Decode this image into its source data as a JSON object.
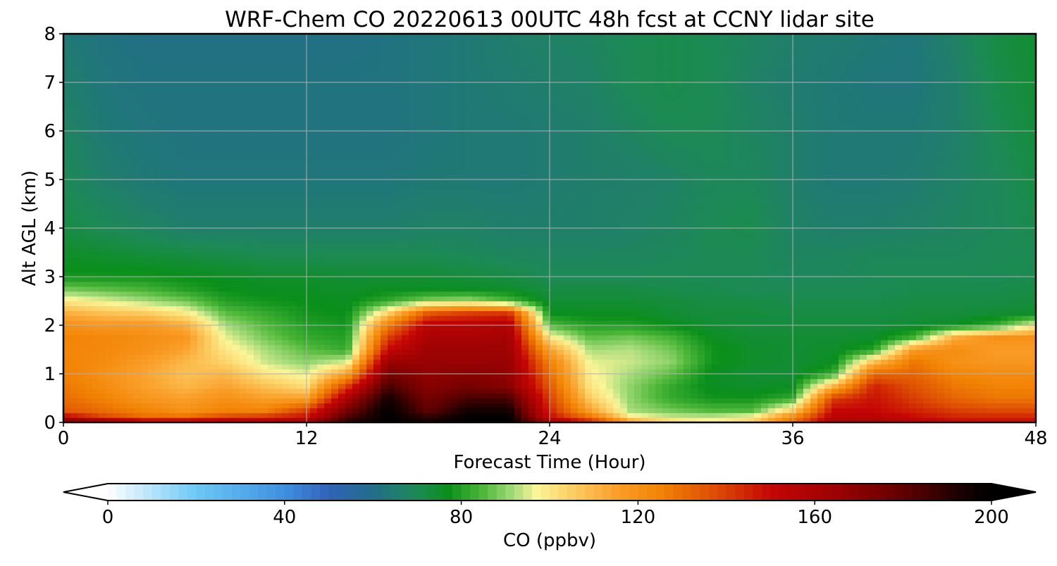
{
  "chart_data": {
    "type": "heatmap",
    "title": "WRF-Chem CO  20220613 00UTC 48h fcst at CCNY lidar site",
    "xlabel": "Forecast Time (Hour)",
    "ylabel": "Alt AGL (km)",
    "xlim": [
      0,
      48
    ],
    "ylim": [
      0,
      8
    ],
    "xticks": [
      0,
      12,
      24,
      36,
      48
    ],
    "xtick_labels": [
      "0",
      "12",
      "24",
      "36",
      "48"
    ],
    "yticks": [
      0,
      1,
      2,
      3,
      4,
      5,
      6,
      7,
      8
    ],
    "ytick_labels": [
      "0",
      "1",
      "2",
      "3",
      "4",
      "5",
      "6",
      "7",
      "8"
    ],
    "grid": true,
    "colorbar": {
      "label": "CO  (ppbv)",
      "range": [
        0,
        200
      ],
      "ticks": [
        0,
        40,
        80,
        120,
        160,
        200
      ],
      "tick_labels": [
        "0",
        "40",
        "80",
        "120",
        "160",
        "200"
      ],
      "extend": "both",
      "min_extend_color": "#ffffff",
      "max_extend_color": "#000000",
      "colormap": [
        [
          0,
          "#ffffff"
        ],
        [
          20,
          "#6cc8f5"
        ],
        [
          40,
          "#3f8fe0"
        ],
        [
          50,
          "#3063b8"
        ],
        [
          60,
          "#226d8a"
        ],
        [
          70,
          "#1d8a55"
        ],
        [
          77,
          "#0a8f1a"
        ],
        [
          85,
          "#4fb83a"
        ],
        [
          92,
          "#a8dc7c"
        ],
        [
          97,
          "#fbf598"
        ],
        [
          104,
          "#fdd36a"
        ],
        [
          115,
          "#fa9f2a"
        ],
        [
          125,
          "#f28304"
        ],
        [
          138,
          "#dd4a04"
        ],
        [
          150,
          "#c50505"
        ],
        [
          165,
          "#9c0202"
        ],
        [
          180,
          "#610000"
        ],
        [
          193,
          "#1a0000"
        ],
        [
          200,
          "#000000"
        ]
      ]
    },
    "times": [
      0,
      2,
      4,
      6,
      8,
      10,
      12,
      14,
      16,
      18,
      20,
      22,
      24,
      26,
      28,
      30,
      32,
      34,
      36,
      38,
      40,
      42,
      44,
      46,
      48
    ],
    "altitudes": [
      0,
      0.1,
      0.25,
      0.5,
      0.75,
      1,
      1.25,
      1.5,
      1.75,
      2,
      2.25,
      2.5,
      2.75,
      3,
      3.5,
      4,
      5,
      6,
      7,
      8
    ],
    "co_ppbv": [
      [
        180,
        175,
        165,
        165,
        165,
        160,
        165,
        190,
        200,
        195,
        200,
        200,
        165,
        150,
        120,
        105,
        98,
        105,
        130,
        160,
        160,
        155,
        150,
        150,
        150
      ],
      [
        155,
        140,
        130,
        130,
        140,
        145,
        150,
        185,
        200,
        190,
        200,
        200,
        150,
        130,
        100,
        95,
        95,
        100,
        125,
        155,
        155,
        150,
        145,
        145,
        145
      ],
      [
        135,
        130,
        125,
        120,
        125,
        125,
        140,
        175,
        200,
        180,
        195,
        195,
        145,
        115,
        92,
        88,
        85,
        85,
        105,
        150,
        150,
        145,
        140,
        138,
        138
      ],
      [
        130,
        125,
        118,
        115,
        120,
        115,
        115,
        160,
        195,
        175,
        185,
        185,
        140,
        105,
        90,
        82,
        78,
        78,
        82,
        140,
        148,
        140,
        132,
        128,
        128
      ],
      [
        128,
        122,
        115,
        110,
        114,
        108,
        102,
        140,
        185,
        170,
        175,
        170,
        135,
        100,
        90,
        82,
        76,
        75,
        76,
        110,
        145,
        136,
        128,
        125,
        125
      ],
      [
        126,
        120,
        114,
        108,
        110,
        100,
        96,
        115,
        175,
        168,
        170,
        168,
        130,
        98,
        92,
        86,
        76,
        74,
        74,
        82,
        132,
        132,
        124,
        122,
        122
      ],
      [
        125,
        122,
        116,
        110,
        104,
        94,
        90,
        95,
        165,
        166,
        166,
        166,
        125,
        96,
        94,
        90,
        78,
        75,
        74,
        76,
        108,
        128,
        120,
        118,
        118
      ],
      [
        124,
        123,
        120,
        114,
        100,
        92,
        86,
        82,
        150,
        164,
        164,
        164,
        115,
        92,
        93,
        88,
        78,
        75,
        74,
        75,
        80,
        118,
        122,
        116,
        116
      ],
      [
        125,
        123,
        121,
        118,
        96,
        88,
        82,
        80,
        140,
        160,
        160,
        162,
        100,
        86,
        88,
        84,
        76,
        74,
        74,
        74,
        75,
        84,
        112,
        120,
        120
      ],
      [
        120,
        118,
        118,
        112,
        92,
        85,
        80,
        78,
        126,
        155,
        155,
        158,
        85,
        80,
        80,
        77,
        74,
        73,
        73,
        73,
        73,
        74,
        76,
        82,
        98
      ],
      [
        112,
        108,
        106,
        100,
        86,
        82,
        78,
        77,
        104,
        135,
        140,
        142,
        77,
        76,
        76,
        74,
        73,
        73,
        72,
        72,
        72,
        73,
        73,
        74,
        75
      ],
      [
        100,
        96,
        92,
        88,
        80,
        78,
        77,
        76,
        82,
        90,
        92,
        85,
        74,
        74,
        74,
        73,
        72,
        72,
        71,
        71,
        71,
        72,
        72,
        72,
        73
      ],
      [
        88,
        86,
        84,
        80,
        77,
        76,
        76,
        75,
        76,
        76,
        76,
        75,
        72,
        72,
        72,
        71,
        71,
        70,
        70,
        70,
        70,
        71,
        71,
        71,
        72
      ],
      [
        78,
        78,
        78,
        77,
        76,
        75,
        75,
        74,
        74,
        74,
        73,
        72,
        70,
        70,
        70,
        70,
        70,
        70,
        69,
        69,
        70,
        70,
        70,
        70,
        71
      ],
      [
        75,
        74,
        73,
        72,
        71,
        70,
        70,
        70,
        70,
        70,
        69,
        68,
        68,
        68,
        68,
        69,
        70,
        70,
        68,
        68,
        69,
        69,
        69,
        70,
        70
      ],
      [
        72,
        70,
        68,
        66,
        66,
        66,
        66,
        66,
        66,
        67,
        67,
        66,
        66,
        66,
        67,
        68,
        70,
        71,
        67,
        66,
        66,
        67,
        68,
        69,
        71
      ],
      [
        70,
        66,
        64,
        63,
        63,
        63,
        63,
        63,
        63,
        64,
        64,
        64,
        65,
        66,
        66,
        67,
        69,
        69,
        66,
        64,
        64,
        65,
        67,
        69,
        72
      ],
      [
        68,
        64,
        63,
        62,
        62,
        62,
        62,
        62,
        62,
        63,
        64,
        64,
        65,
        66,
        68,
        70,
        70,
        68,
        66,
        64,
        64,
        64,
        66,
        70,
        73
      ],
      [
        66,
        63,
        62,
        62,
        62,
        62,
        62,
        62,
        62,
        63,
        64,
        65,
        66,
        67,
        70,
        71,
        70,
        67,
        65,
        64,
        63,
        63,
        66,
        71,
        74
      ],
      [
        64,
        62,
        61,
        61,
        61,
        61,
        61,
        61,
        62,
        63,
        64,
        66,
        67,
        68,
        70,
        71,
        70,
        68,
        66,
        65,
        64,
        63,
        67,
        72,
        74
      ]
    ]
  }
}
